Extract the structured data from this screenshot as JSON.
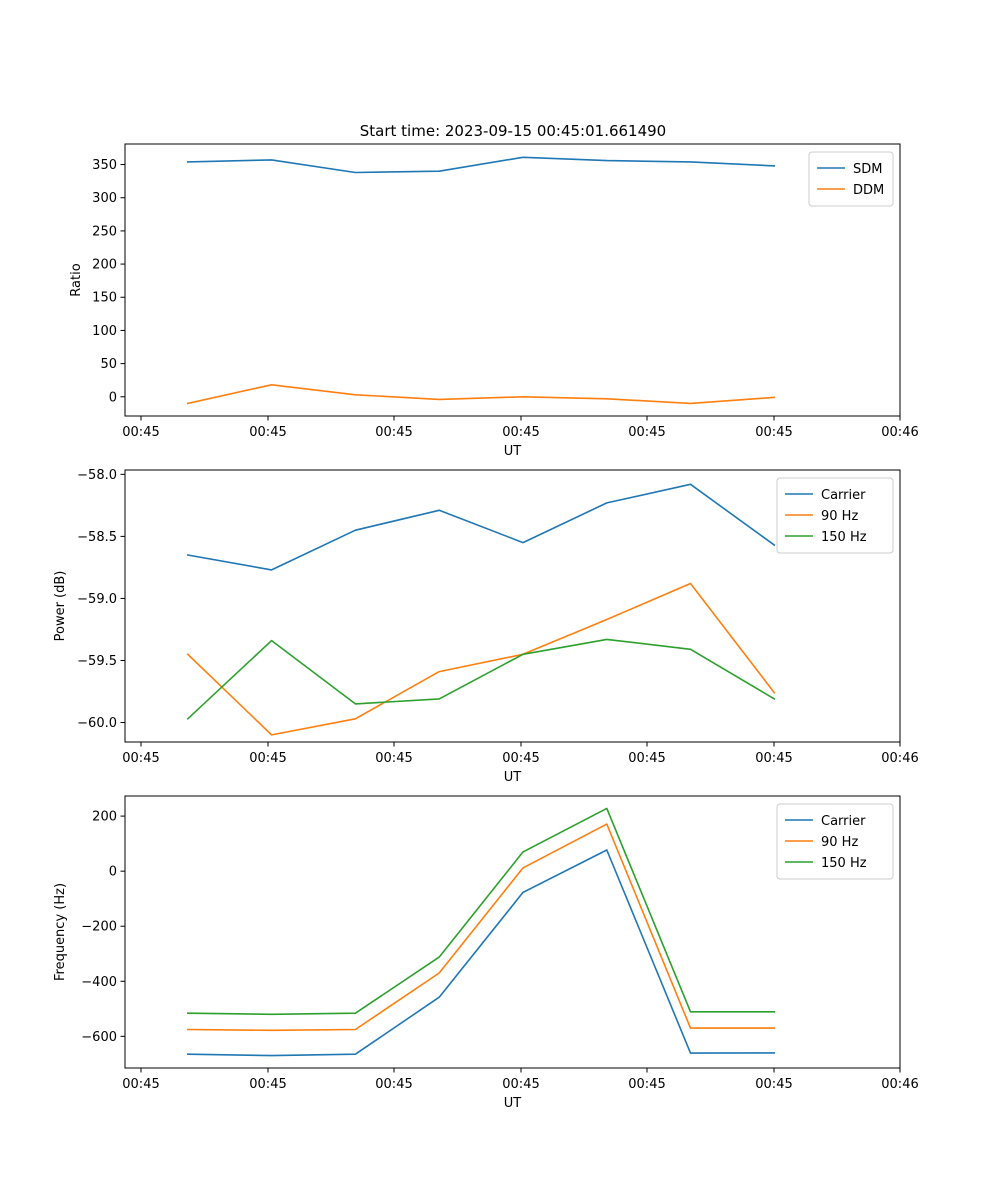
{
  "figure": {
    "title": "Start time: 2023-09-15 00:45:01.661490"
  },
  "chart_data": [
    {
      "type": "line",
      "title": "Start time: 2023-09-15 00:45:01.661490",
      "xlabel": "UT",
      "ylabel": "Ratio",
      "x_tick_labels": [
        "00:45",
        "00:45",
        "00:45",
        "00:45",
        "00:45",
        "00:45",
        "00:46"
      ],
      "y_ticks": [
        0,
        50,
        100,
        150,
        200,
        250,
        300,
        350
      ],
      "ylim": [
        -29,
        381
      ],
      "x": [
        1,
        2,
        3,
        4,
        5,
        6,
        7,
        8
      ],
      "xlim": [
        0.25,
        9.5
      ],
      "legend": "top-right",
      "grid": false,
      "series": [
        {
          "name": "SDM",
          "color": "#1f77b4",
          "values": [
            354,
            357,
            338,
            340,
            361,
            356,
            354,
            348
          ]
        },
        {
          "name": "DDM",
          "color": "#ff7f0e",
          "values": [
            -10,
            18,
            3,
            -4,
            0,
            -3,
            -10,
            -1
          ]
        }
      ]
    },
    {
      "type": "line",
      "title": "",
      "xlabel": "UT",
      "ylabel": "Power (dB)",
      "x_tick_labels": [
        "00:45",
        "00:45",
        "00:45",
        "00:45",
        "00:45",
        "00:45",
        "00:46"
      ],
      "y_ticks": [
        -60.0,
        -59.5,
        -59.0,
        -58.5,
        -58.0
      ],
      "y_tick_labels": [
        "−60.0",
        "−59.5",
        "−59.0",
        "−58.5",
        "−58.0"
      ],
      "ylim": [
        -60.157,
        -57.965
      ],
      "x": [
        1,
        2,
        3,
        4,
        5,
        6,
        7,
        8
      ],
      "xlim": [
        0.25,
        9.5
      ],
      "legend": "top-right",
      "grid": false,
      "series": [
        {
          "name": "Carrier",
          "color": "#1f77b4",
          "values": [
            -58.65,
            -58.77,
            -58.45,
            -58.29,
            -58.55,
            -58.23,
            -58.08,
            -58.57
          ]
        },
        {
          "name": "90 Hz",
          "color": "#ff7f0e",
          "values": [
            -59.45,
            -60.1,
            -59.97,
            -59.59,
            -59.45,
            -59.17,
            -58.88,
            -59.76
          ]
        },
        {
          "name": "150 Hz",
          "color": "#2ca02c",
          "values": [
            -59.97,
            -59.34,
            -59.85,
            -59.81,
            -59.45,
            -59.33,
            -59.41,
            -59.81
          ]
        }
      ]
    },
    {
      "type": "line",
      "title": "",
      "xlabel": "UT",
      "ylabel": "Frequency (Hz)",
      "x_tick_labels": [
        "00:45",
        "00:45",
        "00:45",
        "00:45",
        "00:45",
        "00:45",
        "00:46"
      ],
      "y_ticks": [
        -600,
        -400,
        -200,
        0,
        200
      ],
      "y_tick_labels": [
        "−600",
        "−400",
        "−200",
        "0",
        "200"
      ],
      "ylim": [
        -715,
        273
      ],
      "x": [
        1,
        2,
        3,
        4,
        5,
        6,
        7,
        8
      ],
      "xlim": [
        0.25,
        9.5
      ],
      "legend": "top-right",
      "grid": false,
      "series": [
        {
          "name": "Carrier",
          "color": "#1f77b4",
          "values": [
            -665,
            -670,
            -665,
            -458,
            -77,
            77,
            -661,
            -660
          ]
        },
        {
          "name": "90 Hz",
          "color": "#ff7f0e",
          "values": [
            -575,
            -578,
            -575,
            -370,
            12,
            171,
            -570,
            -570
          ]
        },
        {
          "name": "150 Hz",
          "color": "#2ca02c",
          "values": [
            -516,
            -520,
            -516,
            -312,
            70,
            228,
            -511,
            -511
          ]
        }
      ]
    }
  ]
}
